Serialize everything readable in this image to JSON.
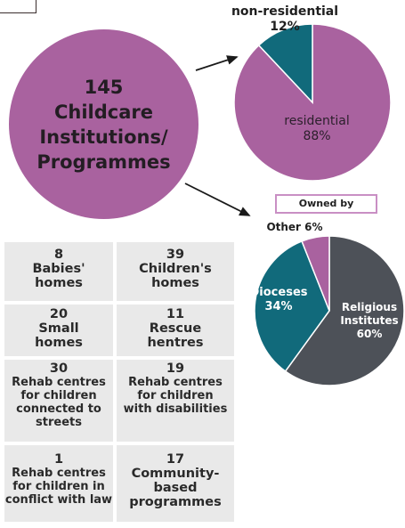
{
  "chart_data": [
    {
      "type": "pie",
      "slices": [
        {
          "label": "residential",
          "pct_label": "88%",
          "value": 88,
          "color": "#a9629f"
        },
        {
          "label": "non-residential",
          "pct_label": "12%",
          "value": 12,
          "color": "#116a7b"
        }
      ]
    },
    {
      "type": "pie",
      "title": "Owned by",
      "slices": [
        {
          "label": "Religious Institutes",
          "pct_label": "60%",
          "value": 60,
          "color": "#4d5158"
        },
        {
          "label": "Dioceses",
          "pct_label": "34%",
          "value": 34,
          "color": "#116a7b"
        },
        {
          "label": "Other",
          "pct_label": "6%",
          "value": 6,
          "color": "#a9629f"
        }
      ]
    }
  ],
  "total": {
    "lines": [
      "145",
      "Childcare",
      "Institutions/",
      "Programmes"
    ]
  },
  "categories": [
    {
      "count": "8",
      "name": "Babies'\nhomes"
    },
    {
      "count": "39",
      "name": "Children's\nhomes"
    },
    {
      "count": "20",
      "name": "Small\nhomes"
    },
    {
      "count": "11",
      "name": "Rescue\nhentres"
    },
    {
      "count": "30",
      "name": "Rehab centres\nfor children\nconnected to\nstreets"
    },
    {
      "count": "19",
      "name": "Rehab centres\nfor children\nwith disabilities"
    },
    {
      "count": "1",
      "name": "Rehab centres\nfor children in\nconflict with law"
    },
    {
      "count": "17",
      "name": "Community-\nbased\nprogrammes"
    }
  ],
  "colors": {
    "purple": "#a9629f",
    "teal": "#116a7b",
    "grey": "#4d5158",
    "cell_bg": "#e9e9e9"
  }
}
